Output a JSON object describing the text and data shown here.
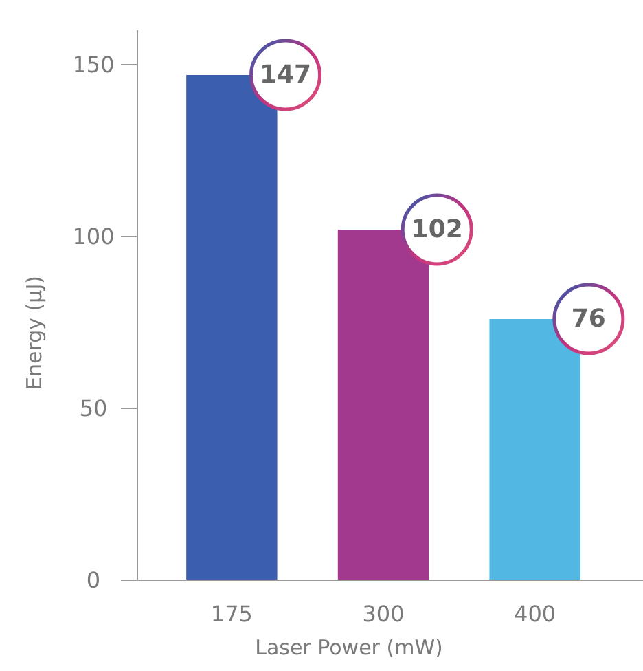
{
  "chart_data": {
    "type": "bar",
    "xlabel": "Laser Power (mW)",
    "ylabel": "Energy (µJ)",
    "categories": [
      "175",
      "300",
      "400"
    ],
    "values": [
      147,
      102,
      76
    ],
    "colors": [
      "#3b5fae",
      "#a3388f",
      "#52b8e3"
    ],
    "ylim": [
      0,
      160
    ],
    "yticks": [
      0,
      50,
      100,
      150
    ],
    "data_labels": true
  }
}
